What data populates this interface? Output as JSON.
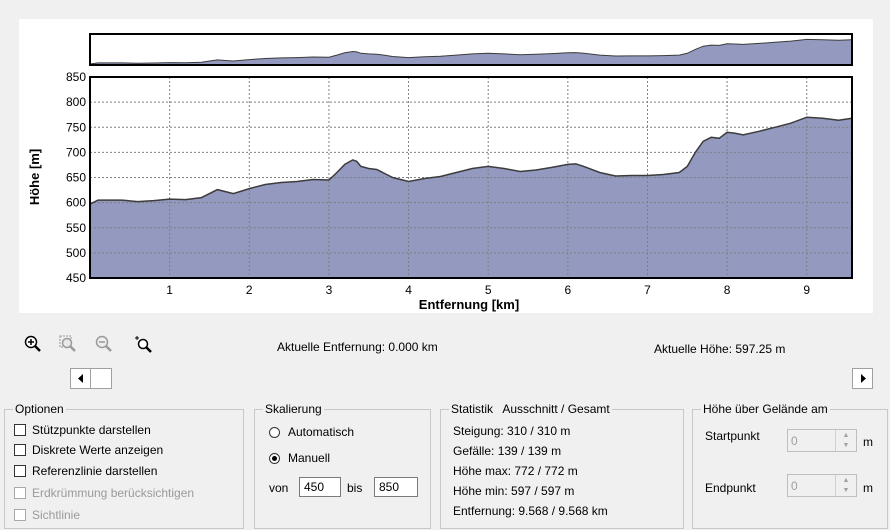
{
  "colors": {
    "fill": "#9399bf",
    "line": "#3c3c3c",
    "grid": "#808080"
  },
  "chart_data": {
    "type": "area",
    "xlabel": "Entfernung [km]",
    "ylabel": "Höhe [m]",
    "xlim": [
      0,
      9.568
    ],
    "ylim": [
      450,
      850
    ],
    "x_ticks": [
      "1",
      "2",
      "3",
      "4",
      "5",
      "6",
      "7",
      "8",
      "9"
    ],
    "y_ticks": [
      "450",
      "500",
      "550",
      "600",
      "650",
      "700",
      "750",
      "800",
      "850"
    ],
    "grid": true,
    "series": [
      {
        "x": [
          0,
          0.1,
          0.2,
          0.4,
          0.6,
          0.8,
          1.0,
          1.2,
          1.4,
          1.5,
          1.6,
          1.7,
          1.8,
          2.0,
          2.2,
          2.4,
          2.6,
          2.8,
          3.0,
          3.1,
          3.2,
          3.3,
          3.35,
          3.4,
          3.5,
          3.6,
          3.7,
          3.8,
          4.0,
          4.2,
          4.4,
          4.6,
          4.8,
          5.0,
          5.2,
          5.4,
          5.6,
          5.8,
          6.0,
          6.1,
          6.2,
          6.4,
          6.6,
          6.8,
          7.0,
          7.2,
          7.4,
          7.5,
          7.6,
          7.7,
          7.8,
          7.9,
          8.0,
          8.1,
          8.2,
          8.4,
          8.6,
          8.8,
          9.0,
          9.2,
          9.4,
          9.568
        ],
        "y": [
          597,
          605,
          605,
          605,
          602,
          604,
          607,
          606,
          610,
          618,
          626,
          622,
          618,
          628,
          636,
          640,
          642,
          646,
          645,
          660,
          676,
          685,
          682,
          672,
          668,
          666,
          658,
          650,
          642,
          648,
          652,
          660,
          668,
          672,
          668,
          662,
          665,
          670,
          676,
          677,
          672,
          660,
          653,
          654,
          654,
          656,
          660,
          672,
          700,
          722,
          730,
          728,
          740,
          738,
          735,
          742,
          750,
          758,
          770,
          768,
          764,
          768
        ]
      }
    ]
  },
  "toolbar": {
    "zoom_in": "zoom-in-icon",
    "zoom_area": "zoom-area-icon",
    "zoom_out": "zoom-out-icon",
    "zoom_fit": "zoom-fit-icon"
  },
  "status": {
    "distance": "Aktuelle Entfernung: 0.000 km",
    "height": "Aktuelle Höhe: 597.25 m"
  },
  "options": {
    "title": "Optionen",
    "items": [
      {
        "label": "Stützpunkte darstellen",
        "enabled": true
      },
      {
        "label": "Diskrete Werte anzeigen",
        "enabled": true
      },
      {
        "label": "Referenzlinie darstellen",
        "enabled": true
      },
      {
        "label": "Erdkrümmung berücksichtigen",
        "enabled": false
      },
      {
        "label": "Sichtlinie",
        "enabled": false
      }
    ]
  },
  "scaling": {
    "title": "Skalierung",
    "auto_label": "Automatisch",
    "manual_label": "Manuell",
    "selected": "manual",
    "from_label": "von",
    "from_value": "450",
    "to_label": "bis",
    "to_value": "850"
  },
  "statistics": {
    "title": "Statistik   Ausschnitt / Gesamt",
    "lines": [
      "Steigung: 310 / 310 m",
      "Gefälle: 139 / 139 m",
      "Höhe max: 772 / 772 m",
      "Höhe min: 597 / 597 m",
      "Entfernung: 9.568 / 9.568 km"
    ]
  },
  "terrain": {
    "title": "Höhe über Gelände am",
    "start_label": "Startpunkt",
    "start_value": "0",
    "end_label": "Endpunkt",
    "end_value": "0",
    "unit": "m"
  }
}
